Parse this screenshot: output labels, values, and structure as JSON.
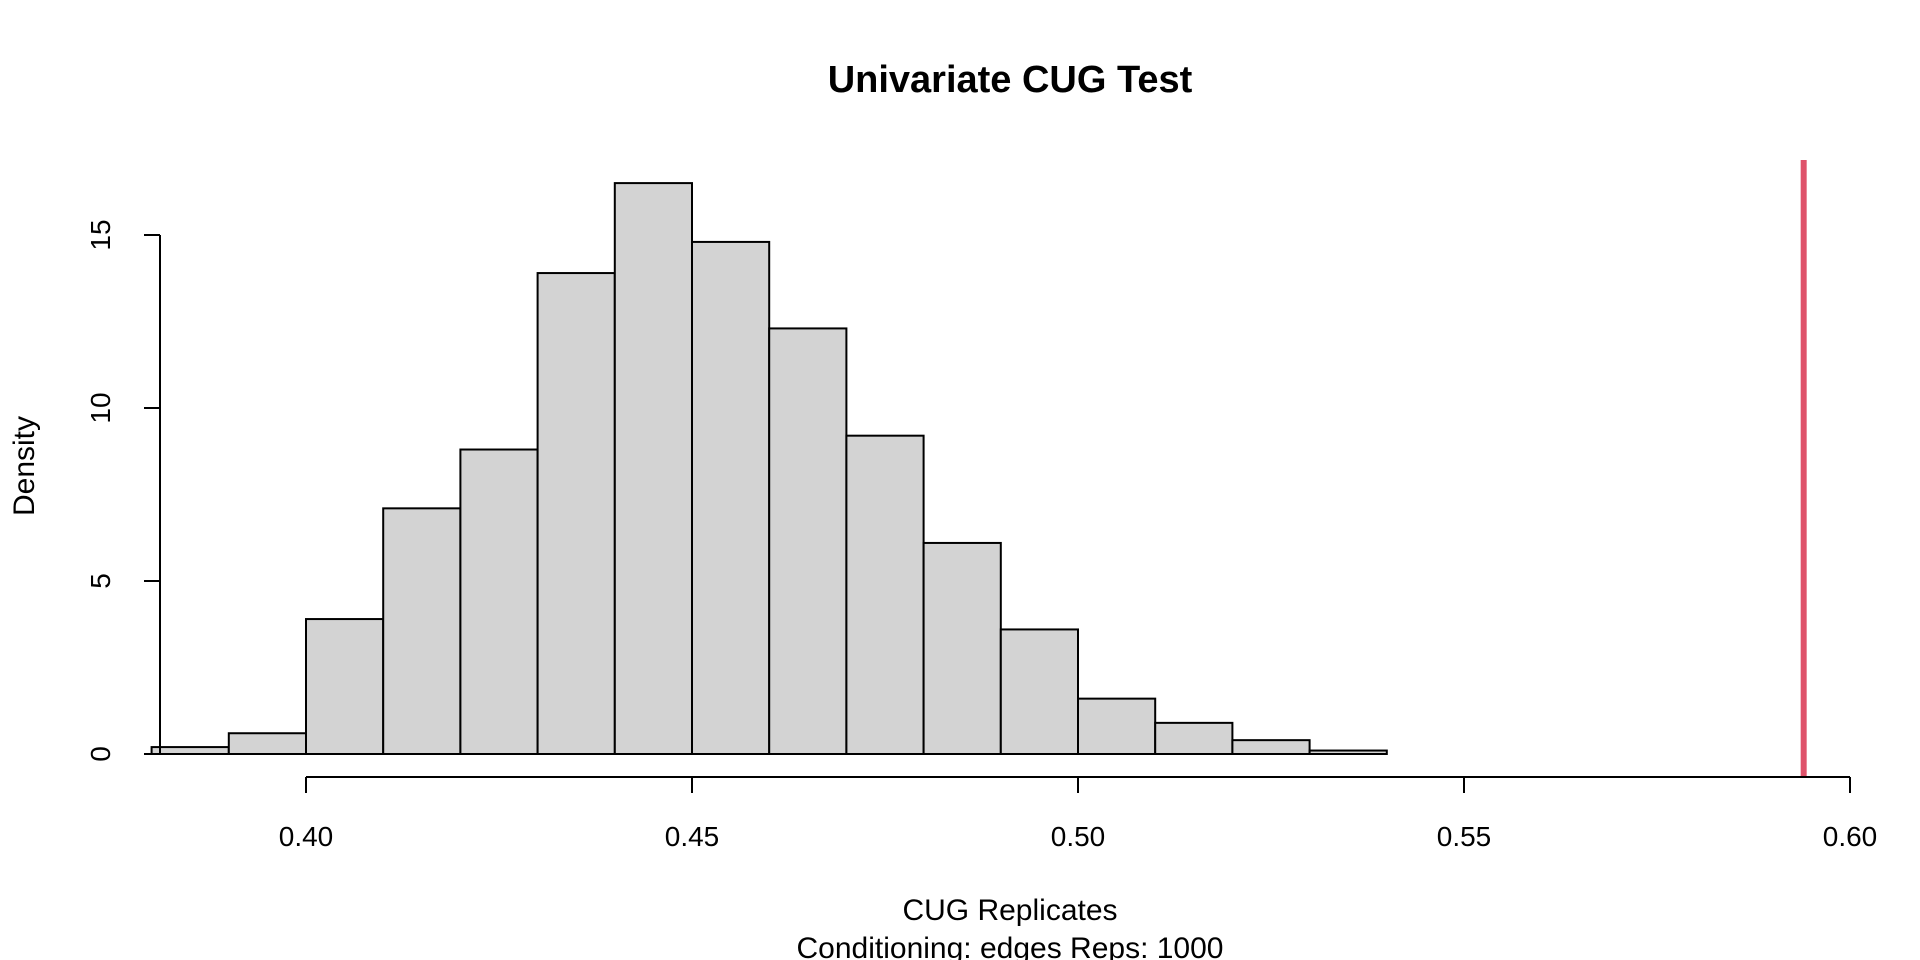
{
  "chart_data": {
    "type": "bar",
    "title": "Univariate CUG Test",
    "xlabel": "CUG Replicates",
    "subtitle": "Conditioning: edges Reps: 1000",
    "ylabel": "Density",
    "bin_width": 0.01,
    "bins": [
      {
        "start": 0.38,
        "end": 0.39,
        "density": 0.2
      },
      {
        "start": 0.39,
        "end": 0.4,
        "density": 0.6
      },
      {
        "start": 0.4,
        "end": 0.41,
        "density": 3.9
      },
      {
        "start": 0.41,
        "end": 0.42,
        "density": 7.1
      },
      {
        "start": 0.42,
        "end": 0.43,
        "density": 8.8
      },
      {
        "start": 0.43,
        "end": 0.44,
        "density": 13.9
      },
      {
        "start": 0.44,
        "end": 0.45,
        "density": 16.5
      },
      {
        "start": 0.45,
        "end": 0.46,
        "density": 14.8
      },
      {
        "start": 0.46,
        "end": 0.47,
        "density": 12.3
      },
      {
        "start": 0.47,
        "end": 0.48,
        "density": 9.2
      },
      {
        "start": 0.48,
        "end": 0.49,
        "density": 6.1
      },
      {
        "start": 0.49,
        "end": 0.5,
        "density": 3.6
      },
      {
        "start": 0.5,
        "end": 0.51,
        "density": 1.6
      },
      {
        "start": 0.51,
        "end": 0.52,
        "density": 0.9
      },
      {
        "start": 0.52,
        "end": 0.53,
        "density": 0.4
      },
      {
        "start": 0.53,
        "end": 0.54,
        "density": 0.1
      }
    ],
    "observed_value": 0.594,
    "observed_line_color": "#DF536B",
    "bar_fill": "#D3D3D3",
    "xlim": [
      0.38,
      0.6
    ],
    "ylim": [
      0,
      17.2
    ],
    "x_ticks": [
      "0.40",
      "0.45",
      "0.50",
      "0.55",
      "0.60"
    ],
    "y_ticks": [
      "0",
      "5",
      "10",
      "15"
    ],
    "grid": false
  }
}
